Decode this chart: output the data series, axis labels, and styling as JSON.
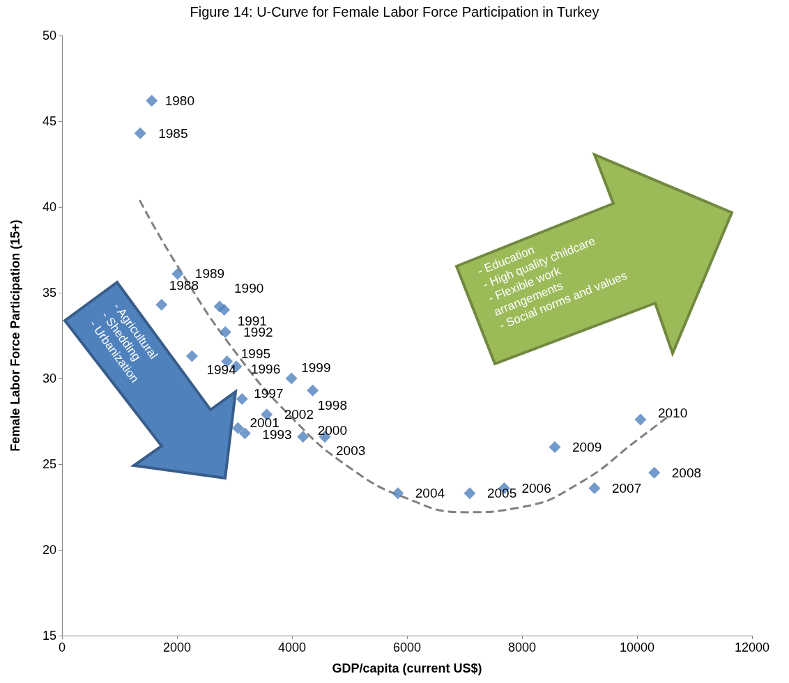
{
  "chart_data": {
    "type": "scatter",
    "title": "Figure 14: U-Curve for Female Labor Force Participation in Turkey",
    "xlabel": "GDP/capita (current US$)",
    "ylabel": "Female Labor Force Participation (15+)",
    "xlim": [
      0,
      12000
    ],
    "xticks": [
      0,
      2000,
      4000,
      6000,
      8000,
      10000,
      12000
    ],
    "ylim": [
      15,
      50
    ],
    "yticks": [
      15,
      20,
      25,
      30,
      35,
      40,
      45,
      50
    ],
    "marker": "diamond",
    "annotations": [
      "- Agricultural\n- Shedding\n- Urbanization",
      "- Education\n- High quality childcare\n- Flexible work\narrangements\n- Social norms and values",
      {
        "text": "1980",
        "x": 1560,
        "y": 46.2
      },
      {
        "text": "1985",
        "x": 1360,
        "y": 44.3
      },
      {
        "text": "1988",
        "x": 1730,
        "y": 34.3
      },
      {
        "text": "1989",
        "x": 2010,
        "y": 36.1
      },
      {
        "text": "1990",
        "x": 2740,
        "y": 34.2
      },
      {
        "text": "1991",
        "x": 2820,
        "y": 34.0
      },
      {
        "text": "1992",
        "x": 2840,
        "y": 32.7
      },
      {
        "text": "1993",
        "x": 3180,
        "y": 26.8
      },
      {
        "text": "1994",
        "x": 2260,
        "y": 31.3
      },
      {
        "text": "1995",
        "x": 2870,
        "y": 31.0
      },
      {
        "text": "1996",
        "x": 3030,
        "y": 30.7
      },
      {
        "text": "1997",
        "x": 3130,
        "y": 28.8
      },
      {
        "text": "1998",
        "x": 4360,
        "y": 29.3
      },
      {
        "text": "1999",
        "x": 3990,
        "y": 30.0
      },
      {
        "text": "2000",
        "x": 4190,
        "y": 26.6
      },
      {
        "text": "2001",
        "x": 3060,
        "y": 27.1
      },
      {
        "text": "2002",
        "x": 3560,
        "y": 27.9
      },
      {
        "text": "2003",
        "x": 4570,
        "y": 26.6
      },
      {
        "text": "2004",
        "x": 5840,
        "y": 23.3
      },
      {
        "text": "2005",
        "x": 7090,
        "y": 23.3
      },
      {
        "text": "2006",
        "x": 7690,
        "y": 23.6
      },
      {
        "text": "2007",
        "x": 9260,
        "y": 23.6
      },
      {
        "text": "2008",
        "x": 10300,
        "y": 24.5
      },
      {
        "text": "2009",
        "x": 8570,
        "y": 26.0
      },
      {
        "text": "2010",
        "x": 10060,
        "y": 27.6
      }
    ],
    "series": [
      {
        "color": "#4f81bd",
        "x": [
          1560,
          1360,
          1730,
          2010,
          2740,
          2820,
          2840,
          3180,
          2260,
          2870,
          3030,
          3130,
          4360,
          3990,
          4190,
          3060,
          3560,
          4570,
          5840,
          7090,
          7690,
          9260,
          10300,
          8570,
          10060
        ],
        "values": [
          46.2,
          44.3,
          34.3,
          36.1,
          34.2,
          34.0,
          32.7,
          26.8,
          31.3,
          31.0,
          30.7,
          28.8,
          29.3,
          30.0,
          26.6,
          27.1,
          27.9,
          26.6,
          23.3,
          23.3,
          23.6,
          23.6,
          24.5,
          26.0,
          27.6
        ]
      },
      {
        "type": "line",
        "color": "#808080",
        "marker": "none",
        "line_style": "dashed",
        "x": [
          1350,
          2000,
          3000,
          4000,
          5000,
          6000,
          7000,
          8000,
          9000,
          10000,
          10550
        ],
        "values": [
          40.4,
          36.6,
          31.6,
          27.7,
          24.8,
          23.0,
          22.2,
          22.5,
          23.9,
          26.4,
          27.8
        ]
      }
    ]
  }
}
